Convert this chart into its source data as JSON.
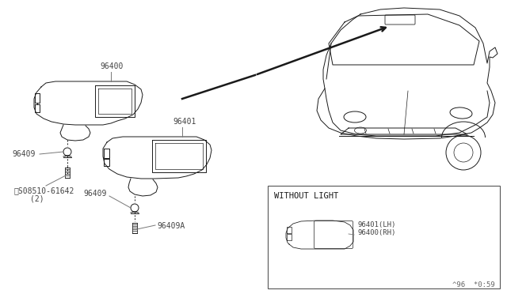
{
  "bg_color": "#ffffff",
  "line_color": "#1a1a1a",
  "gray_line": "#777777",
  "without_light_label": "WITHOUT LIGHT",
  "ref_label1": "96400(RH)",
  "ref_label2": "96401(LH)",
  "footer": "^96  *0:59",
  "label_96400": "96400",
  "label_96401": "96401",
  "label_96409a": "96409",
  "label_96409b": "96409",
  "label_screw": "S08510-61642",
  "label_screw2": "(2)",
  "label_96409A": "96409A"
}
